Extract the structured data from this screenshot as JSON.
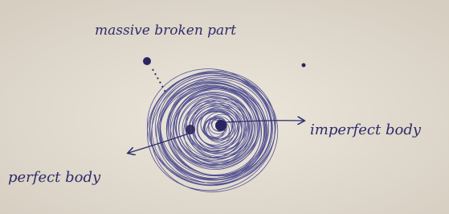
{
  "annotations": [
    {
      "label": "massive broken part"
    },
    {
      "label": "imperfect body"
    },
    {
      "label": "perfect body"
    }
  ]
}
